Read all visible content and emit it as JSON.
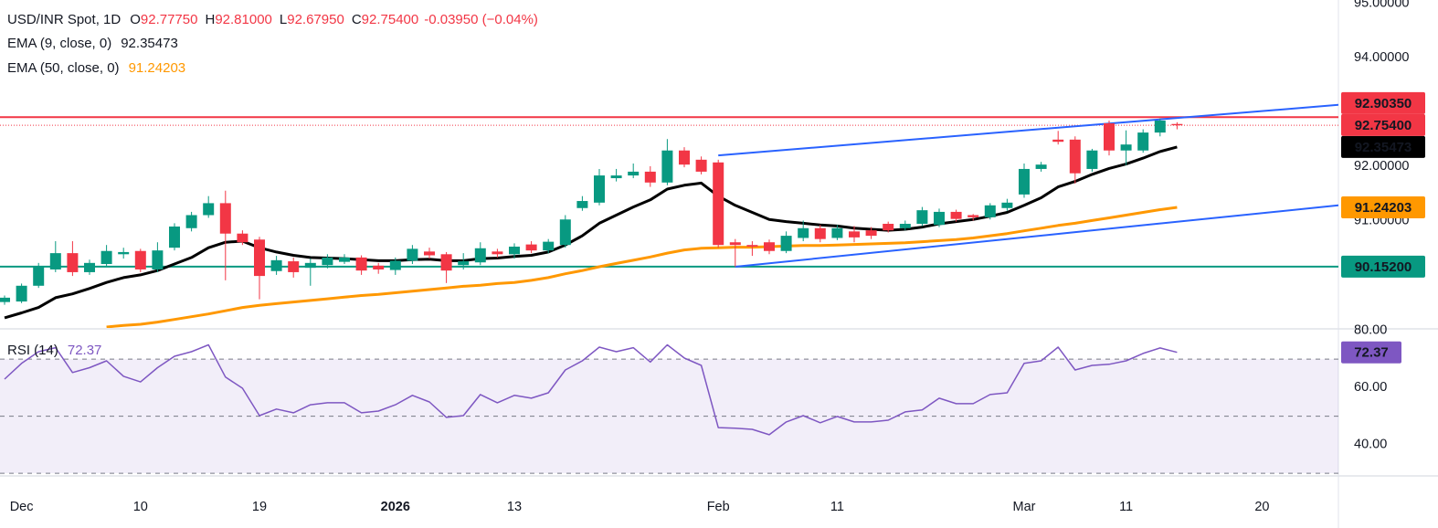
{
  "chart_data": [
    {
      "type": "candlestick",
      "header": {
        "symbol": "USD/INR Spot, 1D",
        "ohlc": [
          {
            "key": "O",
            "value": "92.77750"
          },
          {
            "key": "H",
            "value": "92.81000"
          },
          {
            "key": "L",
            "value": "92.67950"
          },
          {
            "key": "C",
            "value": "92.75400"
          }
        ],
        "change": "-0.03950 (−0.04%)"
      },
      "categories": [
        null,
        "Dec",
        null,
        null,
        null,
        null,
        null,
        null,
        "10",
        null,
        null,
        null,
        null,
        null,
        null,
        "19",
        null,
        null,
        null,
        null,
        null,
        null,
        null,
        "2026",
        null,
        null,
        null,
        null,
        null,
        null,
        "13",
        null,
        null,
        null,
        null,
        null,
        null,
        null,
        null,
        null,
        null,
        null,
        "Feb",
        null,
        null,
        null,
        null,
        null,
        null,
        "11",
        null,
        null,
        null,
        null,
        null,
        null,
        null,
        null,
        null,
        null,
        "Mar",
        null,
        null,
        null,
        null,
        null,
        "11",
        null,
        null,
        null,
        null,
        null,
        null,
        null,
        "20"
      ],
      "open": [
        89.5,
        89.51,
        89.8,
        90.1,
        90.4,
        90.05,
        90.2,
        90.38,
        90.44,
        90.1,
        90.5,
        90.86,
        91.1,
        91.32,
        90.76,
        90.65,
        90.07,
        90.25,
        90.13,
        90.18,
        90.24,
        90.32,
        90.17,
        90.09,
        90.26,
        90.43,
        90.38,
        90.18,
        90.23,
        90.43,
        90.38,
        90.56,
        90.45,
        90.55,
        91.23,
        91.33,
        91.78,
        91.83,
        91.9,
        91.7,
        92.29,
        92.12,
        92.07,
        90.6,
        90.55,
        90.6,
        90.44,
        90.68,
        90.86,
        90.68,
        90.8,
        90.82,
        90.94,
        90.86,
        90.94,
        90.92,
        91.16,
        91.1,
        91.06,
        91.23,
        91.48,
        91.95,
        92.49,
        92.49,
        91.95,
        92.79,
        92.29,
        92.29,
        92.62,
        92.7775,
        null,
        null,
        null,
        null,
        null
      ],
      "high": [
        89.62,
        89.84,
        90.22,
        90.62,
        90.62,
        90.28,
        90.55,
        90.5,
        90.48,
        90.6,
        90.95,
        91.16,
        91.45,
        91.55,
        90.82,
        90.7,
        90.35,
        90.32,
        90.3,
        90.38,
        90.38,
        90.36,
        90.22,
        90.32,
        90.55,
        90.5,
        90.42,
        90.4,
        90.6,
        90.48,
        90.58,
        90.62,
        90.66,
        91.1,
        91.45,
        91.95,
        91.95,
        92.05,
        92.0,
        92.5,
        92.35,
        92.18,
        92.12,
        90.66,
        90.62,
        90.65,
        90.8,
        91.0,
        90.92,
        90.92,
        90.9,
        90.88,
        90.98,
        91.0,
        91.25,
        91.22,
        91.2,
        91.12,
        91.32,
        91.4,
        92.05,
        92.08,
        92.65,
        92.55,
        92.32,
        92.84,
        92.66,
        92.68,
        92.88,
        92.81,
        null,
        null,
        null,
        null,
        null
      ],
      "low": [
        89.45,
        89.48,
        89.76,
        90.05,
        89.98,
        90.0,
        90.15,
        90.3,
        90.05,
        90.05,
        90.45,
        90.8,
        91.05,
        89.9,
        90.55,
        89.55,
        90.0,
        89.95,
        89.8,
        90.12,
        90.2,
        90.0,
        90.02,
        90.0,
        90.2,
        90.3,
        89.85,
        90.1,
        90.18,
        90.32,
        90.3,
        90.4,
        90.4,
        90.5,
        91.18,
        91.28,
        91.72,
        91.78,
        91.62,
        91.65,
        91.98,
        91.85,
        90.5,
        90.15,
        90.35,
        90.38,
        90.4,
        90.62,
        90.6,
        90.64,
        90.6,
        90.66,
        90.78,
        90.82,
        90.9,
        90.88,
        90.98,
        91.0,
        91.02,
        91.18,
        91.42,
        91.9,
        92.4,
        91.68,
        91.9,
        92.2,
        92.02,
        92.25,
        92.55,
        92.6795,
        null,
        null,
        null,
        null,
        null
      ],
      "close": [
        89.58,
        89.8,
        90.15,
        90.4,
        90.05,
        90.22,
        90.44,
        90.42,
        90.1,
        90.45,
        90.89,
        91.1,
        91.32,
        90.76,
        90.6,
        89.98,
        90.27,
        90.05,
        90.22,
        90.32,
        90.32,
        90.08,
        90.1,
        90.26,
        90.48,
        90.36,
        90.08,
        90.25,
        90.49,
        90.38,
        90.52,
        90.45,
        90.61,
        91.02,
        91.36,
        91.83,
        91.83,
        91.9,
        91.7,
        92.29,
        92.03,
        91.9,
        90.55,
        90.55,
        90.52,
        90.44,
        90.72,
        90.86,
        90.66,
        90.86,
        90.69,
        90.72,
        90.82,
        90.94,
        91.19,
        91.16,
        91.03,
        91.06,
        91.28,
        91.33,
        91.95,
        92.03,
        92.45,
        91.87,
        92.29,
        92.29,
        92.4,
        92.62,
        92.84,
        92.754,
        null,
        null,
        null,
        null,
        null
      ],
      "up_color": "#089981",
      "down_color": "#f23645",
      "series": [
        {
          "name": "EMA (9, close, 0)",
          "color": "#000000",
          "values": [
            89.21,
            89.3,
            89.4,
            89.58,
            89.65,
            89.75,
            89.86,
            89.95,
            90.0,
            90.08,
            90.2,
            90.32,
            90.5,
            90.6,
            90.62,
            90.5,
            90.42,
            90.36,
            90.32,
            90.31,
            90.3,
            90.28,
            90.26,
            90.26,
            90.28,
            90.29,
            90.26,
            90.26,
            90.3,
            90.31,
            90.34,
            90.36,
            90.42,
            90.55,
            90.72,
            90.95,
            91.1,
            91.25,
            91.38,
            91.58,
            91.65,
            91.69,
            91.45,
            91.28,
            91.15,
            91.02,
            90.98,
            90.95,
            90.92,
            90.9,
            90.86,
            90.84,
            90.82,
            90.84,
            90.88,
            90.94,
            90.98,
            91.02,
            91.08,
            91.15,
            91.28,
            91.42,
            91.62,
            91.72,
            91.85,
            91.96,
            92.04,
            92.15,
            92.27,
            92.35473,
            null,
            null,
            null,
            null,
            null
          ]
        },
        {
          "name": "EMA (50, close, 0)",
          "color": "#ff9800",
          "values": [
            null,
            null,
            null,
            null,
            null,
            null,
            89.04,
            89.07,
            89.09,
            89.13,
            89.18,
            89.23,
            89.28,
            89.34,
            89.4,
            89.44,
            89.47,
            89.5,
            89.53,
            89.56,
            89.59,
            89.62,
            89.64,
            89.67,
            89.7,
            89.73,
            89.76,
            89.79,
            89.81,
            89.84,
            89.86,
            89.9,
            89.95,
            90.02,
            90.08,
            90.15,
            90.21,
            90.27,
            90.33,
            90.4,
            90.46,
            90.49,
            90.5,
            90.51,
            90.51,
            90.52,
            90.53,
            90.54,
            90.54,
            90.55,
            90.56,
            90.57,
            90.58,
            90.59,
            90.61,
            90.63,
            90.65,
            90.68,
            90.72,
            90.76,
            90.81,
            90.86,
            90.91,
            90.95,
            91.0,
            91.05,
            91.1,
            91.15,
            91.2,
            91.24203,
            null,
            null,
            null,
            null,
            null
          ]
        }
      ],
      "hlines": [
        {
          "value": 92.9035,
          "label": "92.90350",
          "color": "#f23645"
        },
        {
          "value": 90.152,
          "label": "90.15200",
          "color": "#089981"
        }
      ],
      "last_price": {
        "value": 92.754,
        "label": "92.75400",
        "color": "#f23645"
      },
      "trendlines": [
        {
          "color": "#2962ff",
          "points": [
            [
              42,
              92.2
            ],
            [
              78.5,
              93.13
            ]
          ]
        },
        {
          "color": "#2962ff",
          "points": [
            [
              43,
              90.15
            ],
            [
              78.5,
              91.28
            ]
          ]
        }
      ],
      "ylim": [
        89.04,
        95.06
      ],
      "yticks": [
        {
          "value": 95,
          "label": "95.00000"
        },
        {
          "value": 94,
          "label": "94.00000"
        },
        {
          "value": 92,
          "label": "92.00000"
        },
        {
          "value": 91,
          "label": "91.00000"
        }
      ],
      "grid": false
    },
    {
      "type": "line",
      "series": [
        {
          "name": "RSI (14)",
          "color": "#7e57c2",
          "values": [
            63.0,
            68.5,
            72.6,
            74.0,
            65.3,
            67.0,
            69.4,
            64.0,
            62.0,
            67.0,
            71.0,
            72.6,
            75.0,
            63.7,
            59.8,
            50.2,
            52.5,
            51.2,
            54.0,
            54.7,
            54.7,
            51.2,
            51.8,
            54.0,
            57.3,
            55.0,
            49.6,
            50.2,
            57.6,
            54.7,
            57.3,
            56.3,
            58.2,
            66.2,
            69.4,
            74.2,
            72.6,
            74.0,
            69.0,
            75.0,
            70.4,
            67.8,
            46.0,
            45.8,
            45.4,
            43.5,
            48.0,
            50.2,
            47.7,
            49.9,
            48.0,
            48.0,
            48.6,
            51.5,
            52.2,
            56.3,
            54.4,
            54.4,
            57.6,
            58.2,
            68.5,
            69.4,
            74.2,
            66.2,
            67.8,
            68.2,
            69.4,
            72.0,
            73.9,
            72.37,
            null,
            null,
            null,
            null,
            null
          ]
        }
      ],
      "levels": [
        30,
        50,
        70
      ],
      "band_color": "#7e57c2",
      "ylim": [
        29.4,
        80.6
      ],
      "yticks": [
        {
          "value": 80,
          "label": "80.00"
        },
        {
          "value": 60,
          "label": "60.00"
        },
        {
          "value": 40,
          "label": "40.00"
        }
      ],
      "grid": false
    }
  ]
}
